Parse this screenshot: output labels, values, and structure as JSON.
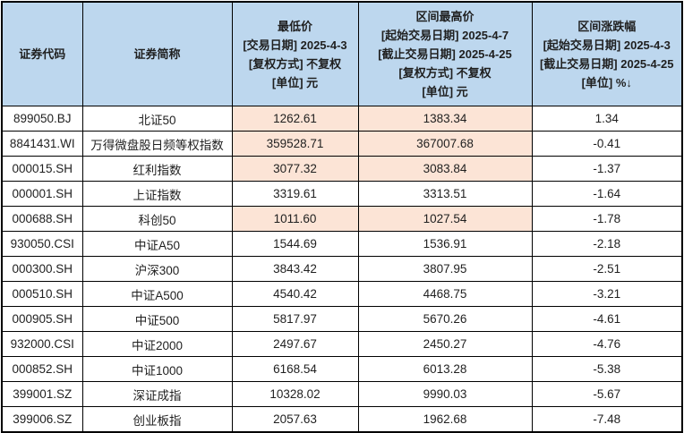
{
  "colors": {
    "header_bg": "#bdd7ee",
    "highlight_bg": "#fce4d6",
    "border": "#000000",
    "text": "#1f1f1f"
  },
  "table": {
    "columns": [
      {
        "lines": [
          "证券代码"
        ]
      },
      {
        "lines": [
          "证券简称"
        ]
      },
      {
        "lines": [
          "最低价",
          "[交易日期] 2025-4-3",
          "[复权方式] 不复权",
          "[单位] 元"
        ]
      },
      {
        "lines": [
          "区间最高价",
          "[起始交易日期] 2025-4-7",
          "[截止交易日期] 2025-4-25",
          "[复权方式] 不复权",
          "[单位] 元"
        ]
      },
      {
        "lines": [
          "区间涨跌幅",
          "[起始交易日期] 2025-4-3",
          "[截止交易日期] 2025-4-25",
          "[单位] %↓"
        ]
      }
    ],
    "rows": [
      {
        "code": "899050.BJ",
        "name": "北证50",
        "low": "1262.61",
        "high": "1383.34",
        "change": "1.34",
        "highlight": true
      },
      {
        "code": "8841431.WI",
        "name": "万得微盘股日频等权指数",
        "low": "359528.71",
        "high": "367007.68",
        "change": "-0.41",
        "highlight": true
      },
      {
        "code": "000015.SH",
        "name": "红利指数",
        "low": "3077.32",
        "high": "3083.84",
        "change": "-1.37",
        "highlight": true
      },
      {
        "code": "000001.SH",
        "name": "上证指数",
        "low": "3319.61",
        "high": "3313.51",
        "change": "-1.64",
        "highlight": false
      },
      {
        "code": "000688.SH",
        "name": "科创50",
        "low": "1011.60",
        "high": "1027.54",
        "change": "-1.78",
        "highlight": true
      },
      {
        "code": "930050.CSI",
        "name": "中证A50",
        "low": "1544.69",
        "high": "1536.91",
        "change": "-2.18",
        "highlight": false
      },
      {
        "code": "000300.SH",
        "name": "沪深300",
        "low": "3843.42",
        "high": "3807.95",
        "change": "-2.51",
        "highlight": false
      },
      {
        "code": "000510.SH",
        "name": "中证A500",
        "low": "4540.42",
        "high": "4468.75",
        "change": "-3.21",
        "highlight": false
      },
      {
        "code": "000905.SH",
        "name": "中证500",
        "low": "5817.97",
        "high": "5670.26",
        "change": "-4.61",
        "highlight": false
      },
      {
        "code": "932000.CSI",
        "name": "中证2000",
        "low": "2497.67",
        "high": "2450.27",
        "change": "-4.76",
        "highlight": false
      },
      {
        "code": "000852.SH",
        "name": "中证1000",
        "low": "6168.54",
        "high": "6013.28",
        "change": "-5.38",
        "highlight": false
      },
      {
        "code": "399001.SZ",
        "name": "深证成指",
        "low": "10328.02",
        "high": "9990.03",
        "change": "-5.67",
        "highlight": false
      },
      {
        "code": "399006.SZ",
        "name": "创业板指",
        "low": "2057.63",
        "high": "1962.68",
        "change": "-7.48",
        "highlight": false
      }
    ]
  },
  "chart_data": {
    "type": "table",
    "columns": [
      "证券代码",
      "证券简称",
      "最低价 [交易日期] 2025-4-3 [复权方式] 不复权 [单位] 元",
      "区间最高价 [起始交易日期] 2025-4-7 [截止交易日期] 2025-4-25 [复权方式] 不复权 [单位] 元",
      "区间涨跌幅 [起始交易日期] 2025-4-3 [截止交易日期] 2025-4-25 [单位] %↓"
    ],
    "rows": [
      [
        "899050.BJ",
        "北证50",
        1262.61,
        1383.34,
        1.34
      ],
      [
        "8841431.WI",
        "万得微盘股日频等权指数",
        359528.71,
        367007.68,
        -0.41
      ],
      [
        "000015.SH",
        "红利指数",
        3077.32,
        3083.84,
        -1.37
      ],
      [
        "000001.SH",
        "上证指数",
        3319.61,
        3313.51,
        -1.64
      ],
      [
        "000688.SH",
        "科创50",
        1011.6,
        1027.54,
        -1.78
      ],
      [
        "930050.CSI",
        "中证A50",
        1544.69,
        1536.91,
        -2.18
      ],
      [
        "000300.SH",
        "沪深300",
        3843.42,
        3807.95,
        -2.51
      ],
      [
        "000510.SH",
        "中证A500",
        4540.42,
        4468.75,
        -3.21
      ],
      [
        "000905.SH",
        "中证500",
        5817.97,
        5670.26,
        -4.61
      ],
      [
        "932000.CSI",
        "中证2000",
        2497.67,
        2450.27,
        -4.76
      ],
      [
        "000852.SH",
        "中证1000",
        6168.54,
        6013.28,
        -5.38
      ],
      [
        "399001.SZ",
        "深证成指",
        10328.02,
        9990.03,
        -5.67
      ],
      [
        "399006.SZ",
        "创业板指",
        2057.63,
        1962.68,
        -7.48
      ]
    ],
    "highlighted_rows": [
      0,
      1,
      2,
      4
    ],
    "highlighted_columns_in_those_rows": [
      2,
      3
    ],
    "sort_indicator": "区间涨跌幅 列含降序箭头 ↓"
  }
}
